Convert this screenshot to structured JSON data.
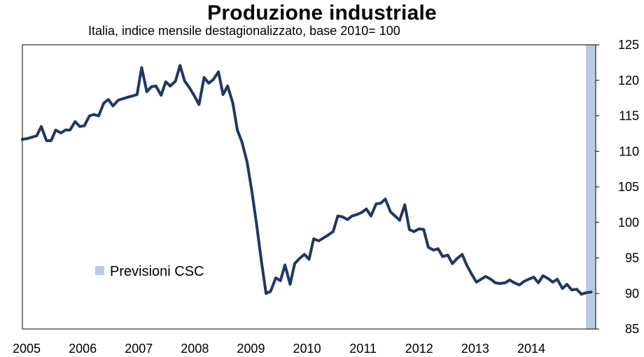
{
  "chart_data": {
    "type": "line",
    "title": "Produzione industriale",
    "subtitle": "Italia, indice mensile destagionalizzato,  base 2010= 100",
    "xlabel": "",
    "ylabel": "",
    "x_tick_labels": [
      "2005",
      "2006",
      "2007",
      "2008",
      "2009",
      "2010",
      "2011",
      "2012",
      "2013",
      "2014"
    ],
    "y_ticks": [
      85,
      90,
      95,
      100,
      105,
      110,
      115,
      120,
      125
    ],
    "ylim": [
      85,
      125
    ],
    "xlim": [
      2005.0,
      2015.0
    ],
    "y_axis_side": "right",
    "grid": false,
    "forecast_band": {
      "label": "Previsioni CSC",
      "x_start": 2014.83,
      "x_end": 2015.0,
      "color": "#b8cce4"
    },
    "legend": {
      "position": "lower-left",
      "entries": [
        "Previsioni CSC"
      ]
    },
    "series": [
      {
        "color": "#1f3864",
        "points": [
          [
            2005.0,
            111.7
          ],
          [
            2005.08,
            111.8
          ],
          [
            2005.17,
            112.0
          ],
          [
            2005.25,
            112.2
          ],
          [
            2005.33,
            113.5
          ],
          [
            2005.42,
            111.5
          ],
          [
            2005.5,
            111.5
          ],
          [
            2005.58,
            113.0
          ],
          [
            2005.67,
            112.6
          ],
          [
            2005.75,
            113.0
          ],
          [
            2005.83,
            113.0
          ],
          [
            2005.92,
            114.2
          ],
          [
            2006.0,
            113.5
          ],
          [
            2006.08,
            113.6
          ],
          [
            2006.17,
            115.0
          ],
          [
            2006.25,
            115.2
          ],
          [
            2006.33,
            115.0
          ],
          [
            2006.42,
            116.8
          ],
          [
            2006.5,
            117.3
          ],
          [
            2006.58,
            116.4
          ],
          [
            2006.67,
            117.2
          ],
          [
            2006.75,
            117.4
          ],
          [
            2006.83,
            117.6
          ],
          [
            2006.92,
            117.8
          ],
          [
            2007.0,
            118.0
          ],
          [
            2007.08,
            121.8
          ],
          [
            2007.17,
            118.4
          ],
          [
            2007.25,
            119.1
          ],
          [
            2007.33,
            119.2
          ],
          [
            2007.42,
            117.9
          ],
          [
            2007.5,
            119.8
          ],
          [
            2007.58,
            119.2
          ],
          [
            2007.67,
            119.9
          ],
          [
            2007.75,
            122.1
          ],
          [
            2007.83,
            119.9
          ],
          [
            2007.92,
            118.9
          ],
          [
            2008.0,
            117.8
          ],
          [
            2008.08,
            116.6
          ],
          [
            2008.17,
            120.4
          ],
          [
            2008.25,
            119.6
          ],
          [
            2008.33,
            120.1
          ],
          [
            2008.42,
            121.2
          ],
          [
            2008.5,
            118.0
          ],
          [
            2008.58,
            119.2
          ],
          [
            2008.67,
            116.8
          ],
          [
            2008.75,
            113.0
          ],
          [
            2008.83,
            111.3
          ],
          [
            2008.92,
            108.5
          ],
          [
            2009.0,
            104.5
          ],
          [
            2009.08,
            100.0
          ],
          [
            2009.17,
            94.5
          ],
          [
            2009.25,
            90.0
          ],
          [
            2009.33,
            90.3
          ],
          [
            2009.42,
            92.2
          ],
          [
            2009.5,
            91.8
          ],
          [
            2009.58,
            94.0
          ],
          [
            2009.67,
            91.3
          ],
          [
            2009.75,
            94.2
          ],
          [
            2009.83,
            94.9
          ],
          [
            2009.92,
            95.5
          ],
          [
            2010.0,
            94.8
          ],
          [
            2010.08,
            97.7
          ],
          [
            2010.17,
            97.4
          ],
          [
            2010.25,
            97.8
          ],
          [
            2010.33,
            98.2
          ],
          [
            2010.42,
            98.7
          ],
          [
            2010.5,
            100.9
          ],
          [
            2010.58,
            100.8
          ],
          [
            2010.67,
            100.4
          ],
          [
            2010.75,
            100.9
          ],
          [
            2010.83,
            101.1
          ],
          [
            2010.92,
            101.4
          ],
          [
            2011.0,
            101.9
          ],
          [
            2011.08,
            100.9
          ],
          [
            2011.17,
            102.6
          ],
          [
            2011.25,
            102.7
          ],
          [
            2011.33,
            103.3
          ],
          [
            2011.42,
            101.5
          ],
          [
            2011.5,
            100.9
          ],
          [
            2011.58,
            100.3
          ],
          [
            2011.67,
            102.5
          ],
          [
            2011.75,
            99.0
          ],
          [
            2011.83,
            98.7
          ],
          [
            2011.92,
            99.1
          ],
          [
            2012.0,
            99.0
          ],
          [
            2012.08,
            96.5
          ],
          [
            2012.17,
            96.1
          ],
          [
            2012.25,
            96.3
          ],
          [
            2012.33,
            95.2
          ],
          [
            2012.42,
            95.4
          ],
          [
            2012.5,
            94.2
          ],
          [
            2012.58,
            94.9
          ],
          [
            2012.67,
            95.5
          ],
          [
            2012.75,
            94.0
          ],
          [
            2012.83,
            92.8
          ],
          [
            2012.92,
            91.6
          ],
          [
            2013.0,
            92.0
          ],
          [
            2013.08,
            92.4
          ],
          [
            2013.17,
            92.0
          ],
          [
            2013.25,
            91.5
          ],
          [
            2013.33,
            91.4
          ],
          [
            2013.42,
            91.5
          ],
          [
            2013.5,
            91.9
          ],
          [
            2013.58,
            91.5
          ],
          [
            2013.67,
            91.2
          ],
          [
            2013.75,
            91.7
          ],
          [
            2013.83,
            92.0
          ],
          [
            2013.92,
            92.3
          ],
          [
            2014.0,
            91.5
          ],
          [
            2014.08,
            92.5
          ],
          [
            2014.17,
            92.1
          ],
          [
            2014.25,
            91.6
          ],
          [
            2014.33,
            92.0
          ],
          [
            2014.42,
            90.7
          ],
          [
            2014.5,
            91.3
          ],
          [
            2014.58,
            90.5
          ],
          [
            2014.67,
            90.6
          ],
          [
            2014.75,
            89.9
          ],
          [
            2014.83,
            90.1
          ],
          [
            2014.92,
            90.2
          ]
        ]
      }
    ]
  }
}
